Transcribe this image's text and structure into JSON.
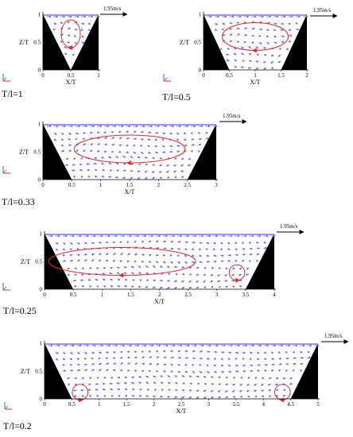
{
  "colors": {
    "vector": "#5a5ae6",
    "streamline": "#e8262a",
    "wall": "#000000",
    "axis": "#000000",
    "triad_x": "#e8262a",
    "triad_y": "#2bb24c",
    "triad_z": "#3a55e0"
  },
  "scale_vector": {
    "label": "1.95m/s"
  },
  "panels": [
    {
      "label": "T/l=1",
      "xlabel": "X/T",
      "ylabel": "Z/T",
      "xticks": [
        "0",
        "0.5",
        "1"
      ],
      "yticks": [
        "0",
        "0.5",
        "1"
      ],
      "xlim": [
        0,
        1
      ],
      "ylim": [
        0,
        1
      ],
      "vortices": [
        {
          "shape": "ellipse",
          "cx": 0.5,
          "cz": 0.65,
          "direction": "counter-clockwise"
        }
      ]
    },
    {
      "label": "T/l=0.5",
      "xlabel": "X/T",
      "ylabel": "Z/T",
      "xticks": [
        "0",
        "0.5",
        "1",
        "1.5",
        "2"
      ],
      "yticks": [
        "0",
        "0.5",
        "1"
      ],
      "xlim": [
        0,
        2
      ],
      "ylim": [
        0,
        1
      ],
      "vortices": [
        {
          "shape": "ellipse",
          "cx": 1.0,
          "cz": 0.6,
          "direction": "counter-clockwise"
        }
      ]
    },
    {
      "label": "T/l=0.33",
      "xlabel": "X/T",
      "ylabel": "Z/T",
      "xticks": [
        "0",
        "0.5",
        "1",
        "1.5",
        "2",
        "2.5",
        "3"
      ],
      "yticks": [
        "0",
        "0.5",
        "1"
      ],
      "xlim": [
        0,
        3
      ],
      "ylim": [
        0,
        1
      ],
      "vortices": [
        {
          "shape": "ellipse",
          "cx": 1.5,
          "cz": 0.55,
          "direction": "counter-clockwise"
        }
      ]
    },
    {
      "label": "T/l=0.25",
      "xlabel": "X/T",
      "ylabel": "Z/T",
      "xticks": [
        "0",
        "0.5",
        "1",
        "1.5",
        "2",
        "2.5",
        "3",
        "3.5",
        "4"
      ],
      "yticks": [
        "0",
        "0.5",
        "1"
      ],
      "xlim": [
        0,
        4
      ],
      "ylim": [
        0,
        1
      ],
      "vortices": [
        {
          "shape": "ellipse",
          "cx": 1.35,
          "cz": 0.5,
          "direction": "counter-clockwise"
        },
        {
          "shape": "circle",
          "cx": 3.35,
          "cz": 0.3,
          "direction": "clockwise"
        }
      ]
    },
    {
      "label": "T/l=0.2",
      "xlabel": "X/T",
      "ylabel": "Z/T",
      "xticks": [
        "0",
        "0.5",
        "1",
        "1.5",
        "2",
        "2.5",
        "3",
        "3.5",
        "4",
        "4.5",
        "5"
      ],
      "yticks": [
        "0",
        "0.5",
        "1"
      ],
      "xlim": [
        0,
        5
      ],
      "ylim": [
        0,
        1
      ],
      "vortices": [
        {
          "shape": "circle",
          "cx": 0.65,
          "cz": 0.12,
          "direction": "clockwise"
        },
        {
          "shape": "circle",
          "cx": 4.35,
          "cz": 0.12,
          "direction": "counter-clockwise"
        }
      ]
    }
  ]
}
